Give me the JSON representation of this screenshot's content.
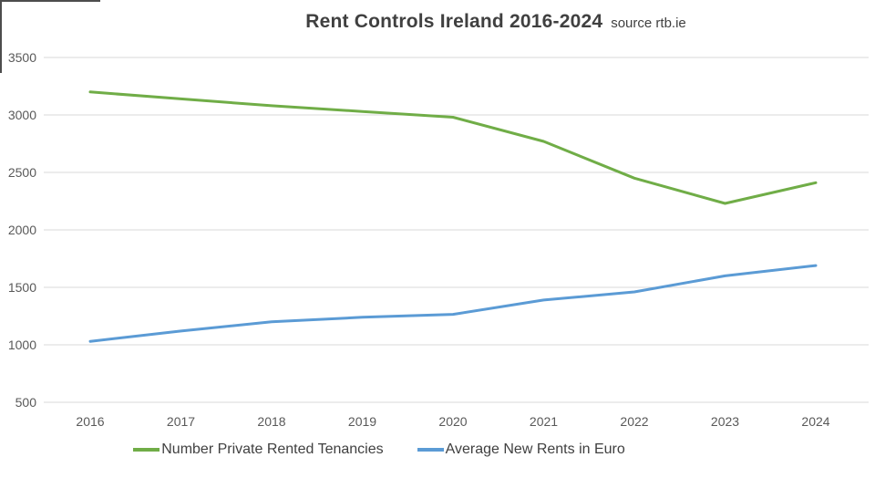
{
  "title": {
    "main": "Rent Controls Ireland 2016-2024",
    "source": "source rtb.ie"
  },
  "colors": {
    "tenancies_green": "#70AD47",
    "rents_blue": "#5B9BD5",
    "gridline": "#D9D9D9",
    "axis_text": "#595959",
    "title_text": "#404040"
  },
  "chart_data": {
    "type": "line",
    "title": "Rent Controls Ireland 2016-2024",
    "subtitle": "source rtb.ie",
    "categories": [
      "2016",
      "2017",
      "2018",
      "2019",
      "2020",
      "2021",
      "2022",
      "2023",
      "2024"
    ],
    "series": [
      {
        "name": "Number Private Rented Tenancies",
        "color": "#70AD47",
        "values": [
          3200,
          3140,
          3080,
          3030,
          2980,
          2770,
          2450,
          2230,
          2410
        ]
      },
      {
        "name": "Average New Rents in Euro",
        "color": "#5B9BD5",
        "values": [
          1030,
          1120,
          1200,
          1240,
          1265,
          1390,
          1460,
          1600,
          1690
        ]
      }
    ],
    "ylim": [
      500,
      3500
    ],
    "yticks": [
      500,
      1000,
      1500,
      2000,
      2500,
      3000,
      3500
    ],
    "grid": true,
    "legend_position": "bottom"
  },
  "legend": {
    "items": [
      {
        "label": "Number Private Rented Tenancies",
        "color": "#70AD47"
      },
      {
        "label": "Average New Rents in Euro",
        "color": "#5B9BD5"
      }
    ]
  }
}
